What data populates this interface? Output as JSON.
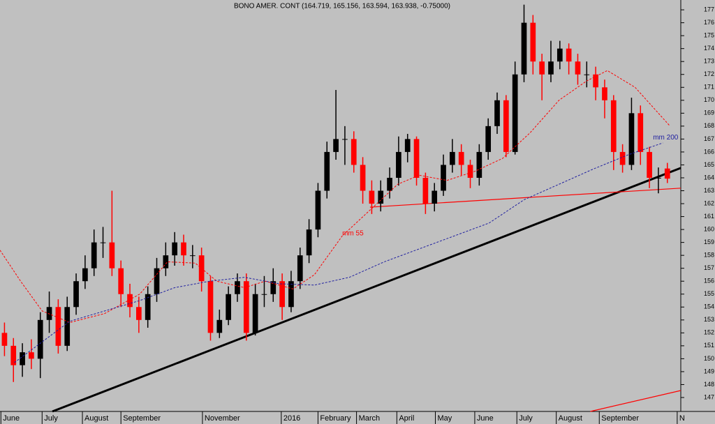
{
  "chart_data": {
    "type": "candlestick",
    "title": "BONO AMER. CONT (164.719, 165.156, 163.594, 163.938, -0.75000)",
    "up_color": "#000000",
    "down_color": "#ff0000",
    "xlim": [
      -0.5,
      75.5
    ],
    "xticks": [
      {
        "value": -0.4,
        "label": "June"
      },
      {
        "value": 4.2,
        "label": "July"
      },
      {
        "value": 8.7,
        "label": "August"
      },
      {
        "value": 13,
        "label": "September"
      },
      {
        "value": 22.1,
        "label": "November"
      },
      {
        "value": 30.9,
        "label": "2016"
      },
      {
        "value": 35,
        "label": "February"
      },
      {
        "value": 39.3,
        "label": "March"
      },
      {
        "value": 43.8,
        "label": "April"
      },
      {
        "value": 48.1,
        "label": "May"
      },
      {
        "value": 52.5,
        "label": "June"
      },
      {
        "value": 57.2,
        "label": "July"
      },
      {
        "value": 61.6,
        "label": "August"
      },
      {
        "value": 66.4,
        "label": "September"
      },
      {
        "value": 75.1,
        "label": "N"
      }
    ],
    "ylim": [
      145.92,
      177.76
    ],
    "yticks": [
      147,
      148,
      149,
      150,
      151,
      152,
      153,
      154,
      155,
      156,
      157,
      158,
      159,
      160,
      161,
      162,
      163,
      164,
      165,
      166,
      167,
      168,
      169,
      170,
      171,
      172,
      173,
      174,
      175,
      176,
      177
    ],
    "x": [
      0,
      1,
      2,
      3,
      4,
      5,
      6,
      7,
      8,
      9,
      10,
      11,
      12,
      13,
      14,
      15,
      16,
      17,
      18,
      19,
      20,
      21,
      22,
      23,
      24,
      25,
      26,
      27,
      28,
      29,
      30,
      31,
      32,
      33,
      34,
      35,
      36,
      37,
      38,
      39,
      40,
      41,
      42,
      43,
      44,
      45,
      46,
      47,
      48,
      49,
      50,
      51,
      52,
      53,
      54,
      55,
      56,
      57,
      58,
      59,
      60,
      61,
      62,
      63,
      64,
      65,
      66,
      67,
      68,
      69,
      70,
      71,
      72,
      73,
      74
    ],
    "open": [
      152,
      151,
      149.5,
      150.5,
      150,
      153,
      154,
      151,
      154,
      156,
      157,
      159,
      159,
      157,
      155,
      154,
      153,
      155,
      157,
      158,
      159,
      158,
      158,
      156,
      152,
      153,
      155,
      156,
      152,
      155,
      155,
      156,
      154,
      156,
      158,
      160,
      163,
      166,
      167,
      167,
      165,
      163,
      162,
      163,
      164,
      166,
      167,
      164,
      162,
      163,
      165,
      166,
      165,
      164,
      166,
      168,
      170,
      166,
      172,
      176,
      173,
      172,
      173,
      174,
      173,
      172,
      172,
      171,
      170,
      166,
      165,
      169,
      166,
      164,
      164.719
    ],
    "high": [
      152.8,
      151.6,
      151.2,
      151.5,
      153.6,
      155.2,
      154.6,
      154.8,
      156.6,
      158,
      160,
      160.2,
      163,
      157.6,
      155.8,
      154.8,
      155.6,
      157.8,
      159,
      159.8,
      159.6,
      158.8,
      158.6,
      156.4,
      153.8,
      155.6,
      156.6,
      156.6,
      155.8,
      156.4,
      157,
      156.6,
      156.8,
      158.6,
      160.8,
      163.6,
      166.8,
      170.8,
      168,
      167.6,
      165.6,
      163.8,
      163.8,
      164.8,
      167.2,
      167.4,
      167.2,
      164.4,
      163.6,
      165.8,
      167,
      166.6,
      165.4,
      166.6,
      168.6,
      170.6,
      170.4,
      173,
      177.4,
      176.6,
      173.6,
      174.6,
      174.6,
      174.4,
      173.6,
      173,
      172.6,
      171.6,
      170.4,
      166.6,
      170.2,
      169.6,
      166.4,
      164.8,
      165.156
    ],
    "low": [
      150.2,
      148.2,
      148.6,
      149.2,
      148.5,
      152,
      150.4,
      150.6,
      153.4,
      155.4,
      156.4,
      157.8,
      156.4,
      154,
      153.2,
      152,
      152.4,
      154.4,
      156.4,
      157.2,
      157.2,
      157,
      155.2,
      151.4,
      151.6,
      152.6,
      154.4,
      151.4,
      151.8,
      154,
      154.4,
      153,
      153.6,
      155.4,
      157.4,
      159.4,
      162.4,
      165.4,
      165,
      164.4,
      162,
      161.2,
      161.4,
      162.4,
      163.4,
      165.2,
      163.4,
      161.2,
      161.4,
      162.6,
      164.4,
      164.2,
      163.2,
      163.4,
      165.4,
      167.4,
      165.6,
      165.8,
      171.4,
      172,
      170,
      171.4,
      172.4,
      172,
      171.2,
      171,
      170,
      168.6,
      164.6,
      164.4,
      164.6,
      165,
      163.2,
      162.8,
      163.594
    ],
    "close": [
      151,
      149.5,
      150.5,
      150,
      153,
      154,
      151,
      154,
      156,
      157,
      159,
      159,
      157,
      155,
      154,
      153,
      155,
      157,
      158,
      159,
      158,
      158,
      156,
      152,
      153,
      155,
      156,
      152,
      155,
      155,
      156,
      154,
      156,
      158,
      160,
      163,
      166,
      167,
      167,
      165,
      163,
      162,
      163,
      164,
      166,
      167,
      164,
      162,
      163,
      165,
      166,
      165,
      164,
      166,
      168,
      170,
      166,
      172,
      176,
      173,
      172,
      173,
      174,
      173,
      172,
      172,
      171,
      170,
      166,
      165,
      169,
      166,
      164,
      164,
      163.938
    ],
    "series": [
      {
        "name": "mm 55",
        "color": "#ff0000",
        "x": [
          -0.5,
          1.8,
          4.2,
          7.3,
          11.2,
          15.1,
          18.2,
          21.3,
          23.7,
          26.8,
          29.1,
          32.2,
          34.6,
          37.7,
          40.8,
          43.9,
          46.3,
          49.4,
          52.5,
          55.6,
          58.7,
          61.9,
          65,
          67.3,
          70.4,
          74.3
        ],
        "values": [
          158.4,
          156,
          153.7,
          152.8,
          153.5,
          155,
          157.5,
          157.4,
          156,
          155.5,
          156,
          155.4,
          156.5,
          159.5,
          161.5,
          163.5,
          164.2,
          163.8,
          164.5,
          165.5,
          167.5,
          170,
          171.5,
          172.3,
          171,
          168
        ],
        "label_at": [
          37.7,
          159.7
        ]
      },
      {
        "name": "mm 200",
        "color": "#2020a0",
        "x": [
          1.1,
          7.3,
          15.1,
          19,
          22.9,
          26.8,
          30.7,
          34.6,
          38.5,
          42.4,
          46.3,
          50.2,
          54.1,
          58,
          61.9,
          65.8,
          69.7,
          73.5
        ],
        "values": [
          149.7,
          152.9,
          154.5,
          155.5,
          156,
          156.3,
          155.8,
          155.7,
          156.3,
          157.5,
          158.5,
          159.5,
          160.5,
          162.3,
          163.5,
          164.7,
          165.8,
          166.7
        ],
        "label_at": [
          72.4,
          167.1
        ]
      }
    ],
    "trendlines": [
      {
        "color": "#000000",
        "x": [
          5.35,
          75.5
        ],
        "y": [
          145.92,
          164.76
        ]
      },
      {
        "color": "#ff0000",
        "x": [
          40.8,
          75.5
        ],
        "y": [
          161.73,
          163.2
        ]
      },
      {
        "color": "#ff0000",
        "x": [
          65.4,
          75.5
        ],
        "y": [
          145.92,
          147.54
        ]
      }
    ]
  }
}
